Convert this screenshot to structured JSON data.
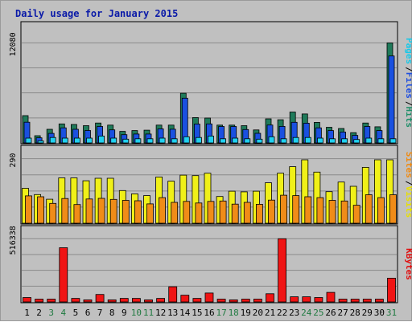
{
  "chart_data": {
    "type": "bar",
    "title": "Daily usage for January 2015",
    "categories": [
      "1",
      "2",
      "3",
      "4",
      "5",
      "6",
      "7",
      "8",
      "9",
      "10",
      "11",
      "12",
      "13",
      "14",
      "15",
      "16",
      "17",
      "18",
      "19",
      "20",
      "21",
      "22",
      "23",
      "24",
      "25",
      "26",
      "27",
      "28",
      "29",
      "30",
      "31"
    ],
    "weekend_days": [
      "3",
      "4",
      "10",
      "11",
      "17",
      "18",
      "24",
      "25",
      "31"
    ],
    "grid": true,
    "panels": [
      {
        "id": "hits",
        "max_label": "12080",
        "ylim": [
          0,
          12080
        ],
        "axis_labels": [
          {
            "text": "Hits",
            "color": "#1f8f6a"
          },
          {
            "text": "Files",
            "color": "#1f4fe0"
          },
          {
            "text": "Pages",
            "color": "#18c8e8"
          }
        ],
        "separators": [
          "/",
          "/"
        ],
        "series": [
          {
            "name": "Hits",
            "color": "#1f7a5a",
            "values": [
              3300,
              870,
              1650,
              2300,
              2230,
              2080,
              2400,
              2150,
              1400,
              1490,
              1540,
              2150,
              2150,
              6000,
              3060,
              3000,
              2150,
              2150,
              2080,
              1570,
              2910,
              2800,
              3730,
              3500,
              2480,
              1890,
              1740,
              1240,
              2400,
              1950,
              12080
            ]
          },
          {
            "name": "Files",
            "color": "#1a50e0",
            "values": [
              2500,
              620,
              1150,
              1820,
              1650,
              1500,
              1990,
              1580,
              1000,
              1080,
              1080,
              1700,
              1660,
              5400,
              2280,
              2300,
              1990,
              1990,
              1620,
              1160,
              2160,
              2000,
              2490,
              2380,
              1820,
              1490,
              1320,
              910,
              1990,
              1490,
              10500
            ]
          },
          {
            "name": "Pages",
            "color": "#20d0f0",
            "values": [
              580,
              250,
              660,
              580,
              580,
              580,
              830,
              580,
              460,
              500,
              500,
              580,
              500,
              750,
              660,
              830,
              500,
              580,
              500,
              460,
              750,
              500,
              660,
              660,
              580,
              500,
              500,
              420,
              580,
              500,
              500
            ]
          }
        ]
      },
      {
        "id": "visits",
        "max_label": "290",
        "ylim": [
          0,
          290
        ],
        "axis_labels": [
          {
            "text": "Visits",
            "color": "#e8e000"
          },
          {
            "text": "Sites",
            "color": "#f08a10"
          }
        ],
        "separators": [
          "/"
        ],
        "series": [
          {
            "name": "Visits",
            "color": "#f0f018",
            "values": [
              157,
              129,
              108,
              204,
              204,
              191,
              202,
              202,
              147,
              132,
              124,
              208,
              189,
              216,
              214,
              225,
              120,
              144,
              141,
              144,
              182,
              225,
              254,
              285,
              230,
              142,
              185,
              166,
              251,
              285,
              285
            ]
          },
          {
            "name": "Sites",
            "color": "#f08c18",
            "values": [
              123,
              119,
              89,
              111,
              84,
              109,
              112,
              107,
              103,
              101,
              87,
              115,
              94,
              98,
              91,
              98,
              100,
              86,
              94,
              85,
              104,
              126,
              124,
              119,
              115,
              103,
              100,
              81,
              128,
              115,
              128
            ]
          }
        ]
      },
      {
        "id": "kbytes",
        "max_label": "516338",
        "ylim": [
          0,
          516338
        ],
        "axis_labels": [
          {
            "text": "KBytes",
            "color": "#e01010"
          }
        ],
        "separators": [],
        "series": [
          {
            "name": "KBytes",
            "color": "#f01414",
            "values": [
              36000,
              23000,
              23000,
              443000,
              29000,
              17000,
              61000,
              17000,
              29000,
              29000,
              17000,
              29000,
              124000,
              55000,
              29000,
              73000,
              23000,
              17000,
              23000,
              23000,
              67000,
              516338,
              42000,
              42000,
              36000,
              78000,
              23000,
              23000,
              23000,
              23000,
              194000
            ]
          }
        ]
      }
    ]
  }
}
